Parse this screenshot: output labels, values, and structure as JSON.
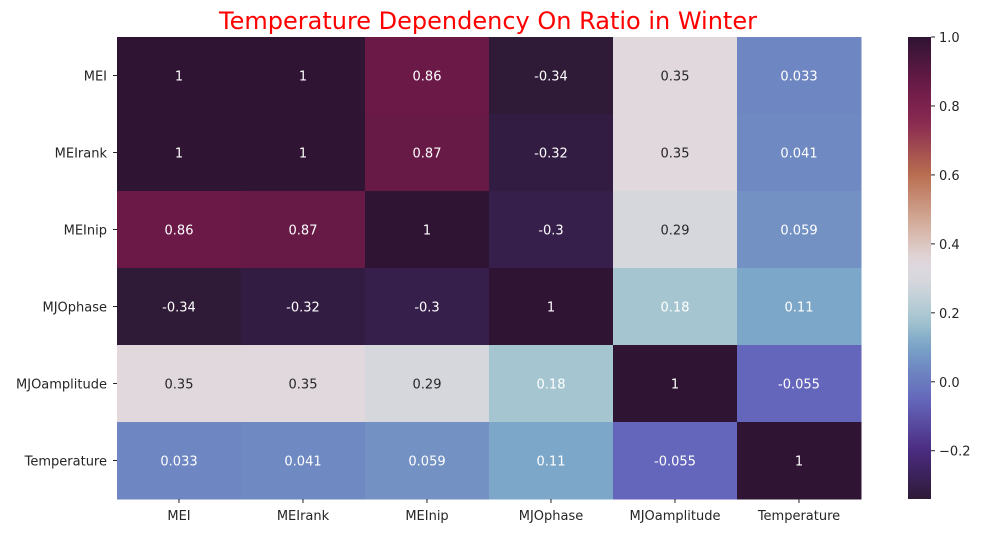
{
  "chart_data": {
    "type": "heatmap",
    "title": "Temperature Dependency On Ratio in Winter",
    "title_color": "#ff0000",
    "x_categories": [
      "MEI",
      "MEIrank",
      "MEInip",
      "MJOphase",
      "MJOamplitude",
      "Temperature"
    ],
    "y_categories": [
      "MEI",
      "MEIrank",
      "MEInip",
      "MJOphase",
      "MJOamplitude",
      "Temperature"
    ],
    "values": [
      [
        1,
        1,
        0.86,
        -0.34,
        0.35,
        0.033
      ],
      [
        1,
        1,
        0.87,
        -0.32,
        0.35,
        0.041
      ],
      [
        0.86,
        0.87,
        1,
        -0.3,
        0.29,
        0.059
      ],
      [
        -0.34,
        -0.32,
        -0.3,
        1,
        0.18,
        0.11
      ],
      [
        0.35,
        0.35,
        0.29,
        0.18,
        1,
        -0.055
      ],
      [
        0.033,
        0.041,
        0.059,
        0.11,
        -0.055,
        1
      ]
    ],
    "labels": [
      [
        "1",
        "1",
        "0.86",
        "-0.34",
        "0.35",
        "0.033"
      ],
      [
        "1",
        "1",
        "0.87",
        "-0.32",
        "0.35",
        "0.041"
      ],
      [
        "0.86",
        "0.87",
        "1",
        "-0.3",
        "0.29",
        "0.059"
      ],
      [
        "-0.34",
        "-0.32",
        "-0.3",
        "1",
        "0.18",
        "0.11"
      ],
      [
        "0.35",
        "0.35",
        "0.29",
        "0.18",
        "1",
        "-0.055"
      ],
      [
        "0.033",
        "0.041",
        "0.059",
        "0.11",
        "-0.055",
        "1"
      ]
    ],
    "colorbar": {
      "vmin": -0.34,
      "vmax": 1.0,
      "ticks": [
        -0.2,
        0.0,
        0.2,
        0.4,
        0.6,
        0.8,
        1.0
      ],
      "tick_labels": [
        "−0.2",
        "0.0",
        "0.2",
        "0.4",
        "0.6",
        "0.8",
        "1.0"
      ],
      "colormap_stops": [
        {
          "v": -0.34,
          "color": "#2f1a37"
        },
        {
          "v": -0.2,
          "color": "#4a2b80"
        },
        {
          "v": -0.055,
          "color": "#6466bb"
        },
        {
          "v": 0.033,
          "color": "#6e86c1"
        },
        {
          "v": 0.11,
          "color": "#7ca7c8"
        },
        {
          "v": 0.18,
          "color": "#a5c6d0"
        },
        {
          "v": 0.29,
          "color": "#d6d7dd"
        },
        {
          "v": 0.35,
          "color": "#e0d8dd"
        },
        {
          "v": 0.45,
          "color": "#d6b1a1"
        },
        {
          "v": 0.6,
          "color": "#b96e50"
        },
        {
          "v": 0.75,
          "color": "#8a2a52"
        },
        {
          "v": 0.86,
          "color": "#6b1a47"
        },
        {
          "v": 1.0,
          "color": "#2f1433"
        }
      ]
    },
    "light_text_threshold": 0.25,
    "light_text_color": "#ffffff",
    "dark_text_color": "#262626"
  }
}
